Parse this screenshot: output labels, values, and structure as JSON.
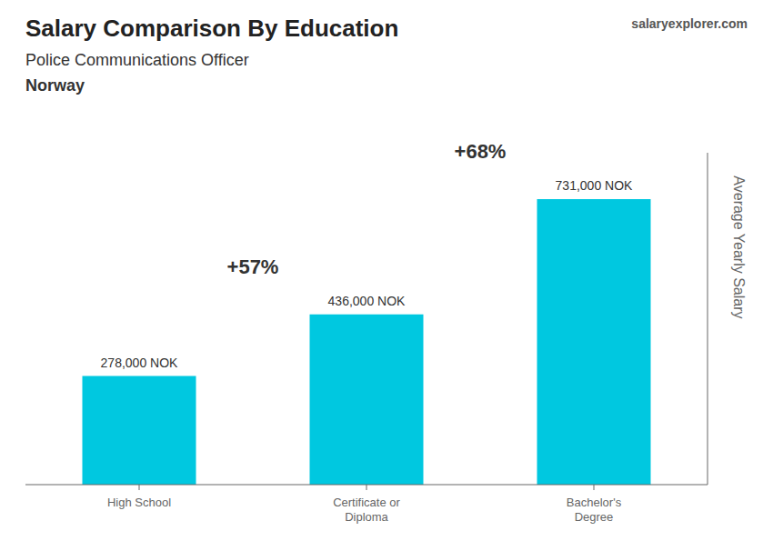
{
  "chart_data": {
    "type": "bar",
    "title": "Salary Comparison By Education",
    "subtitle": "Police Communications Officer",
    "ylabel": "Average Yearly Salary",
    "categories": [
      "High School",
      "Certificate or\nDiploma",
      "Bachelor's\nDegree"
    ],
    "values": [
      278000,
      436000,
      731000
    ],
    "value_labels": [
      "278,000 NOK",
      "436,000 NOK",
      "731,000 NOK"
    ],
    "data_labels": true,
    "color": "#00c8e0",
    "ylim": [
      0,
      850000
    ],
    "yticks": [],
    "tick_labels": "x",
    "grid": false,
    "annotations": [
      {
        "text": "Norway"
      },
      {
        "text": "salaryexplorer.com"
      },
      {
        "text": "+57%",
        "from": "High School",
        "to": "Certificate or\nDiploma"
      },
      {
        "text": "+68%",
        "from": "Certificate or\nDiploma",
        "to": "Bachelor's\nDegree"
      }
    ]
  }
}
